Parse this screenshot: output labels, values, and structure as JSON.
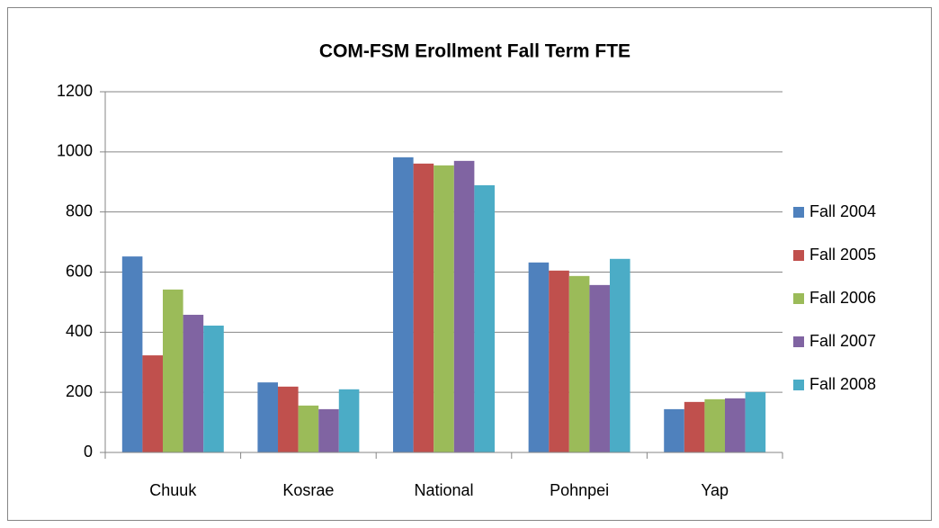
{
  "chart_data": {
    "type": "bar",
    "title": "COM-FSM Erollment Fall Term FTE",
    "categories": [
      "Chuuk",
      "Kosrae",
      "National",
      "Pohnpei",
      "Yap"
    ],
    "series": [
      {
        "name": "Fall 2004",
        "color": "#4f81bd",
        "values": [
          652,
          233,
          982,
          632,
          144
        ]
      },
      {
        "name": "Fall 2005",
        "color": "#c0504d",
        "values": [
          323,
          219,
          961,
          605,
          168
        ]
      },
      {
        "name": "Fall 2006",
        "color": "#9bbb59",
        "values": [
          542,
          156,
          955,
          587,
          177
        ]
      },
      {
        "name": "Fall 2007",
        "color": "#8064a2",
        "values": [
          458,
          144,
          970,
          557,
          180
        ]
      },
      {
        "name": "Fall 2008",
        "color": "#4bacc6",
        "values": [
          422,
          210,
          889,
          644,
          201
        ]
      }
    ],
    "ylim": [
      0,
      1200
    ],
    "yticks": [
      0,
      200,
      400,
      600,
      800,
      1000,
      1200
    ],
    "grid": true,
    "legend": "right"
  }
}
